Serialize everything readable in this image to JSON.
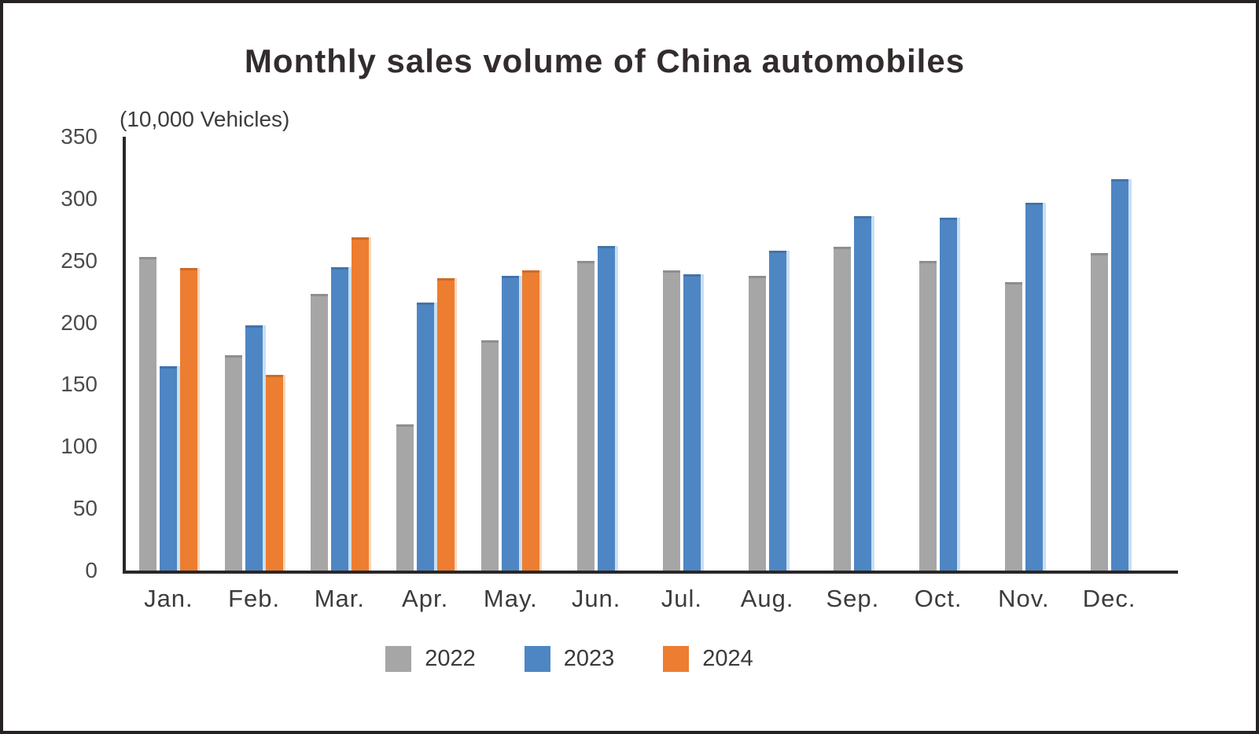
{
  "chart": {
    "title": "Monthly sales volume of China automobiles",
    "unit_label": "(10,000 Vehicles)"
  },
  "chart_data": {
    "type": "bar",
    "title": "Monthly sales volume of China automobiles",
    "ylabel": "(10,000 Vehicles)",
    "xlabel": "",
    "categories": [
      "Jan.",
      "Feb.",
      "Mar.",
      "Apr.",
      "May.",
      "Jun.",
      "Jul.",
      "Aug.",
      "Sep.",
      "Oct.",
      "Nov.",
      "Dec."
    ],
    "series": [
      {
        "name": "2022",
        "color": "#A6A6A6",
        "values": [
          253,
          174,
          223,
          118,
          186,
          250,
          242,
          238,
          261,
          250,
          233,
          256
        ]
      },
      {
        "name": "2023",
        "color": "#4E86C4",
        "values": [
          165,
          198,
          245,
          216,
          238,
          262,
          239,
          258,
          286,
          285,
          297,
          316
        ]
      },
      {
        "name": "2024",
        "color": "#ED7D31",
        "values": [
          244,
          158,
          269,
          236,
          242,
          null,
          null,
          null,
          null,
          null,
          null,
          null
        ]
      }
    ],
    "ylim": [
      0,
      350
    ],
    "yticks": [
      0,
      50,
      100,
      150,
      200,
      250,
      300,
      350
    ],
    "grid": false,
    "legend_position": "bottom"
  }
}
